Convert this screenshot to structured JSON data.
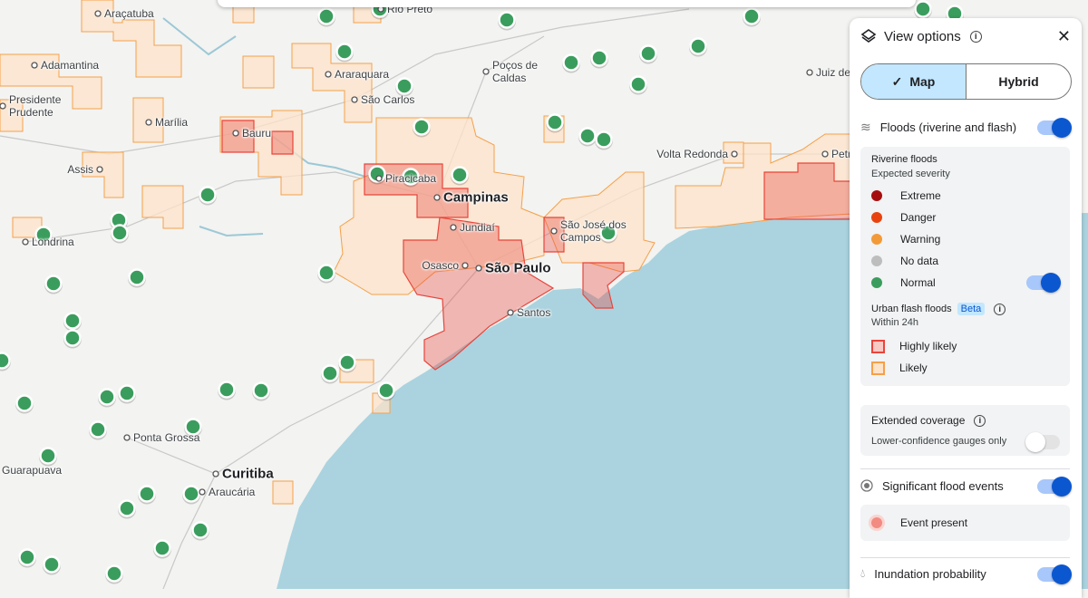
{
  "map": {
    "places": [
      {
        "name": "Araçatuba"
      },
      {
        "name": "Rio Preto"
      },
      {
        "name": "Adamantina"
      },
      {
        "name": "Presidente Prudente"
      },
      {
        "name": "Marília"
      },
      {
        "name": "Bauru"
      },
      {
        "name": "Assis"
      },
      {
        "name": "Londrina"
      },
      {
        "name": "Araraquara"
      },
      {
        "name": "São Carlos"
      },
      {
        "name": "Poços de Caldas"
      },
      {
        "name": "Piracicaba"
      },
      {
        "name": "Campinas"
      },
      {
        "name": "Jundiaí"
      },
      {
        "name": "Osasco"
      },
      {
        "name": "São Paulo"
      },
      {
        "name": "Santos"
      },
      {
        "name": "São José dos Campos"
      },
      {
        "name": "Volta Redonda"
      },
      {
        "name": "Juiz de Fora"
      },
      {
        "name": "Petrópolis"
      },
      {
        "name": "Ponta Grossa"
      },
      {
        "name": "Curitiba"
      },
      {
        "name": "Araucária"
      },
      {
        "name": "Guarapuava"
      }
    ]
  },
  "panel": {
    "title": "View options",
    "view_modes": [
      {
        "label": "Map",
        "selected": true
      },
      {
        "label": "Hybrid",
        "selected": false
      }
    ],
    "floods": {
      "label": "Floods (riverine and flash)",
      "enabled": true,
      "riverine": {
        "title": "Riverine floods",
        "subtitle": "Expected severity",
        "levels": [
          {
            "label": "Extreme",
            "color": "#a50e0e"
          },
          {
            "label": "Danger",
            "color": "#e8430f"
          },
          {
            "label": "Warning",
            "color": "#f29a38"
          },
          {
            "label": "No data",
            "color": "#bdbdbd"
          },
          {
            "label": "Normal",
            "color": "#3a9d5d",
            "enabled": true
          }
        ]
      },
      "flash": {
        "title": "Urban flash floods",
        "badge": "Beta",
        "subtitle": "Within 24h",
        "levels": [
          {
            "label": "Highly likely",
            "color": "#e8453c",
            "fill": "#f9c9c4"
          },
          {
            "label": "Likely",
            "color": "#f5a04a",
            "fill": "#fde3c8"
          }
        ]
      }
    },
    "extended": {
      "title": "Extended coverage",
      "option": "Lower-confidence gauges only",
      "enabled": false
    },
    "events": {
      "label": "Significant flood events",
      "enabled": true,
      "legend": "Event present"
    },
    "inundation": {
      "label": "Inundation probability",
      "enabled": true
    }
  }
}
